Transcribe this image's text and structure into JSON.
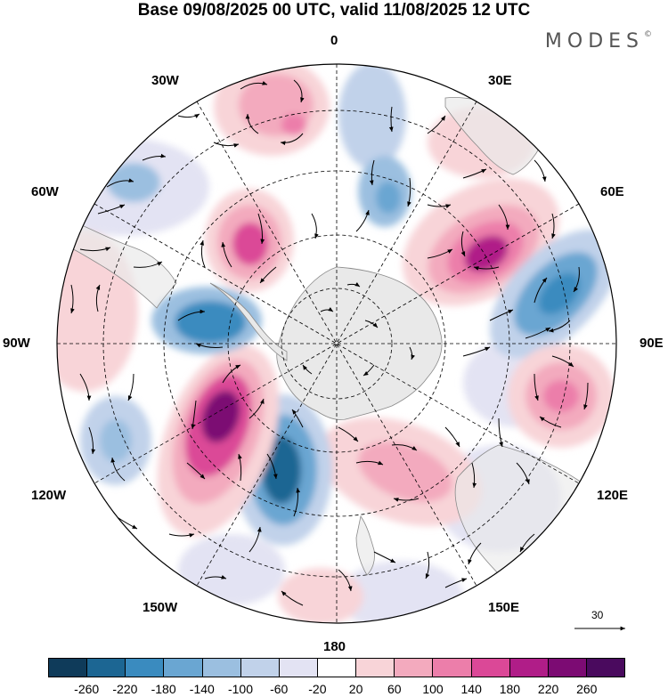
{
  "title": "Base 09/08/2025 00 UTC, valid 11/08/2025 12 UTC",
  "brand": "MODES",
  "brand_mark": "©",
  "longitude_labels": {
    "lon_0": "0",
    "lon_30e": "30E",
    "lon_60e": "60E",
    "lon_90e": "90E",
    "lon_120e": "120E",
    "lon_150e": "150E",
    "lon_180": "180",
    "lon_150w": "150W",
    "lon_120w": "120W",
    "lon_90w": "90W",
    "lon_60w": "60W",
    "lon_30w": "30W"
  },
  "reference_vector": {
    "label": "30"
  },
  "colorbar": {
    "ticks": [
      "-260",
      "-220",
      "-180",
      "-140",
      "-100",
      "-60",
      "-20",
      "20",
      "60",
      "100",
      "140",
      "180",
      "220",
      "260"
    ],
    "colors": [
      "#0f3b5a",
      "#1c6693",
      "#3a8bbf",
      "#6aa6d2",
      "#9bbfe0",
      "#c1d2ea",
      "#e3e3f3",
      "#ffffff",
      "#f8d4d8",
      "#f3aabe",
      "#ec7eaa",
      "#db4897",
      "#b01d88",
      "#7c0b73",
      "#4a0a5e"
    ]
  },
  "anomaly_centers": [
    {
      "name": "high-30w",
      "value": 140
    },
    {
      "name": "high-30w-east",
      "value": 60
    },
    {
      "name": "low-15e",
      "value": -100
    },
    {
      "name": "low-0-mid",
      "value": -60
    },
    {
      "name": "high-45e",
      "value": 220
    },
    {
      "name": "low-75e",
      "value": -180
    },
    {
      "name": "high-105e",
      "value": 180
    },
    {
      "name": "low-120e",
      "value": -60
    },
    {
      "name": "high-165e",
      "value": 100
    },
    {
      "name": "high-180",
      "value": 60
    },
    {
      "name": "low-155w",
      "value": -220
    },
    {
      "name": "high-130w",
      "value": 220
    },
    {
      "name": "low-115w",
      "value": -100
    },
    {
      "name": "low-85w",
      "value": -180
    },
    {
      "name": "high-75w",
      "value": 60
    },
    {
      "name": "high-40w",
      "value": 180
    },
    {
      "name": "low-55w",
      "value": -60
    }
  ],
  "colors": {
    "land": "#e9e9e9",
    "land_edge": "#8a8a8a",
    "grid": "#000000"
  }
}
